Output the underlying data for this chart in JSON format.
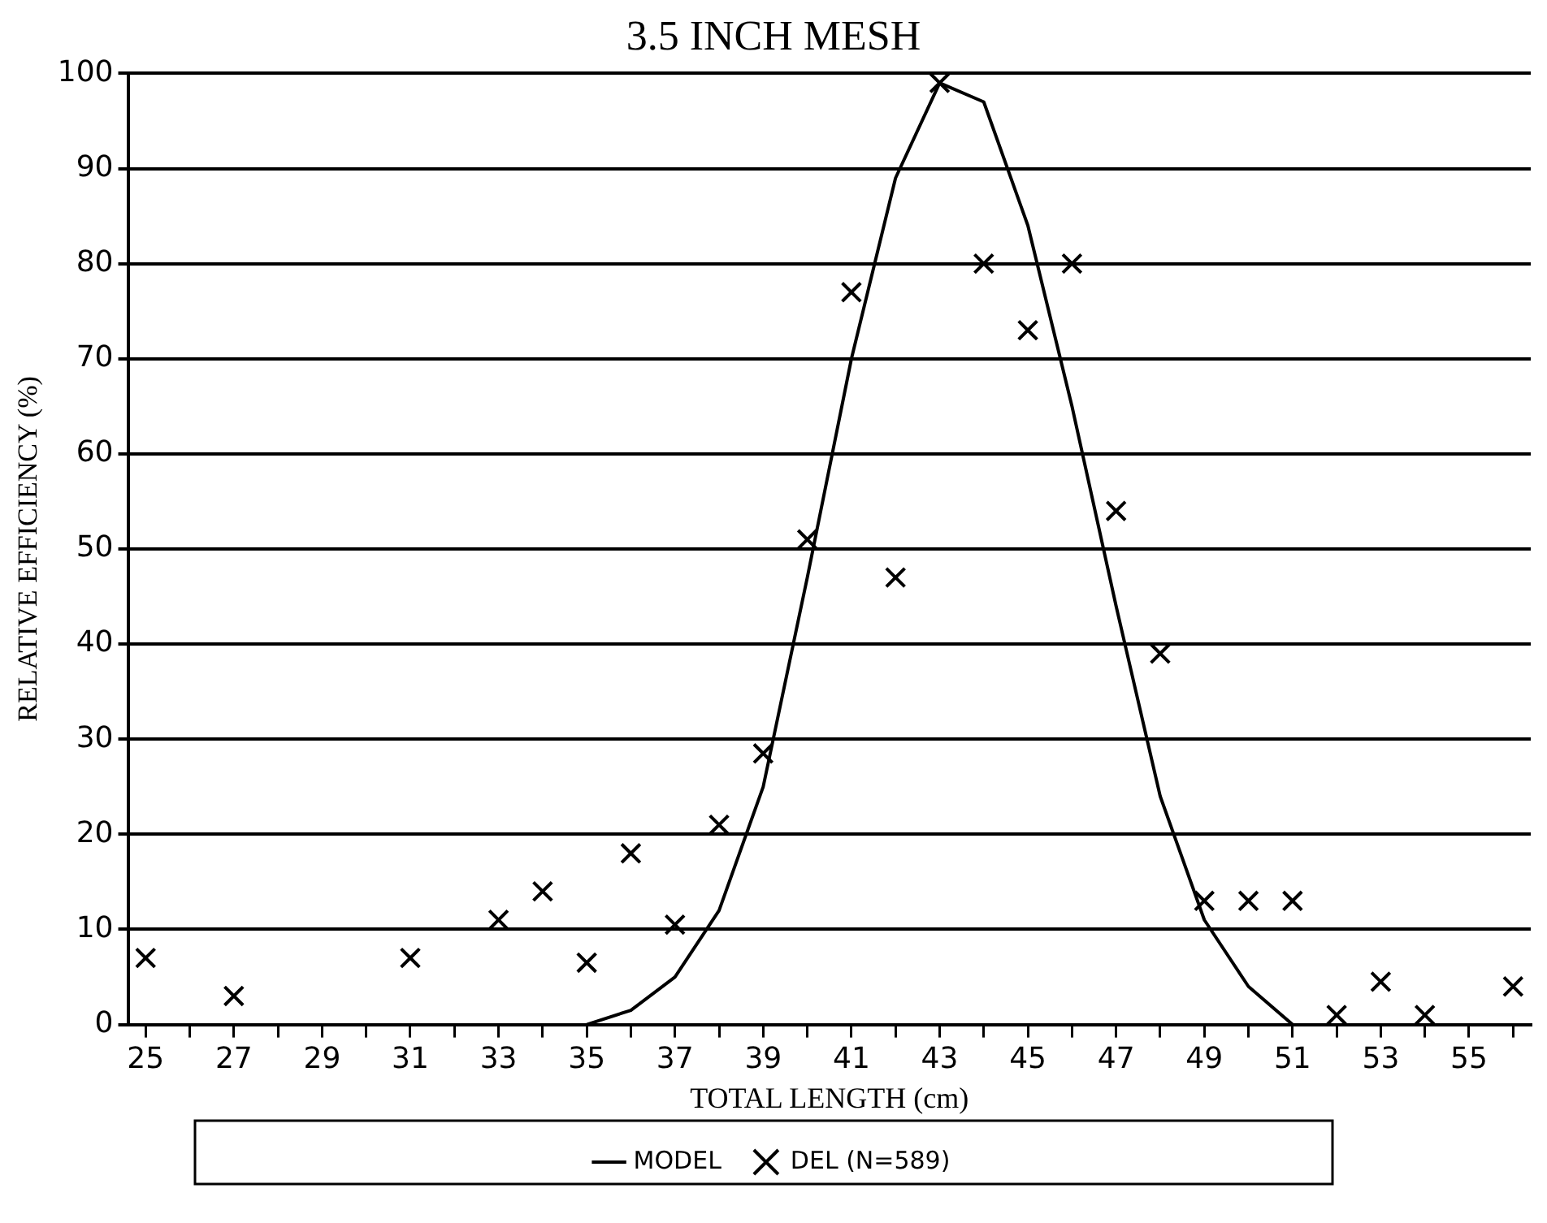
{
  "chart_data": {
    "type": "scatter",
    "title": "3.5 INCH MESH",
    "xlabel": "TOTAL LENGTH (cm)",
    "ylabel": "RELATIVE EFFICIENCY (%)",
    "xlim": [
      24.6,
      56.4
    ],
    "xticks": [
      25,
      {
        "value": 26,
        "label": null
      },
      27,
      {
        "value": 28,
        "label": null
      },
      29,
      {
        "value": 30,
        "label": null
      },
      31,
      {
        "value": 32,
        "label": null
      },
      33,
      {
        "value": 34,
        "label": null
      },
      35,
      {
        "value": 36,
        "label": null
      },
      37,
      {
        "value": 38,
        "label": null
      },
      39,
      {
        "value": 40,
        "label": null
      },
      41,
      {
        "value": 42,
        "label": null
      },
      43,
      {
        "value": 44,
        "label": null
      },
      45,
      {
        "value": 46,
        "label": null
      },
      47,
      {
        "value": 48,
        "label": null
      },
      49,
      {
        "value": 50,
        "label": null
      },
      51,
      {
        "value": 52,
        "label": null
      },
      53,
      {
        "value": 54,
        "label": null
      },
      55,
      {
        "value": 56,
        "label": null
      }
    ],
    "ylim": [
      0,
      100
    ],
    "yticks": [
      0,
      10,
      20,
      30,
      40,
      50,
      60,
      70,
      80,
      90,
      100
    ],
    "grid": "y",
    "legend": "bottom",
    "series": [
      {
        "name": "MODEL",
        "type": "line",
        "color": "#000000",
        "marker": "none",
        "line_style": "solid",
        "x": [
          35,
          36,
          37,
          38,
          39,
          40,
          41,
          42,
          43,
          44,
          45,
          46,
          47,
          48,
          49,
          50,
          51
        ],
        "values": [
          0,
          1.5,
          5,
          12,
          25,
          47,
          70,
          89,
          99,
          97,
          84,
          65,
          44,
          24,
          11,
          4,
          0
        ]
      },
      {
        "name": "DEL (N=589)",
        "color": "#000000",
        "marker": "cross",
        "x": [
          25,
          27,
          31,
          33,
          34,
          35,
          36,
          37,
          38,
          39,
          40,
          41,
          42,
          43,
          44,
          45,
          46,
          47,
          48,
          49,
          50,
          51,
          52,
          53,
          54,
          56
        ],
        "values": [
          7,
          3,
          7,
          11,
          14,
          6.5,
          18,
          10.5,
          21,
          28.5,
          51,
          77,
          47,
          99,
          80,
          73,
          80,
          54,
          39,
          13,
          13,
          13,
          1,
          4.5,
          1,
          4
        ]
      }
    ]
  }
}
